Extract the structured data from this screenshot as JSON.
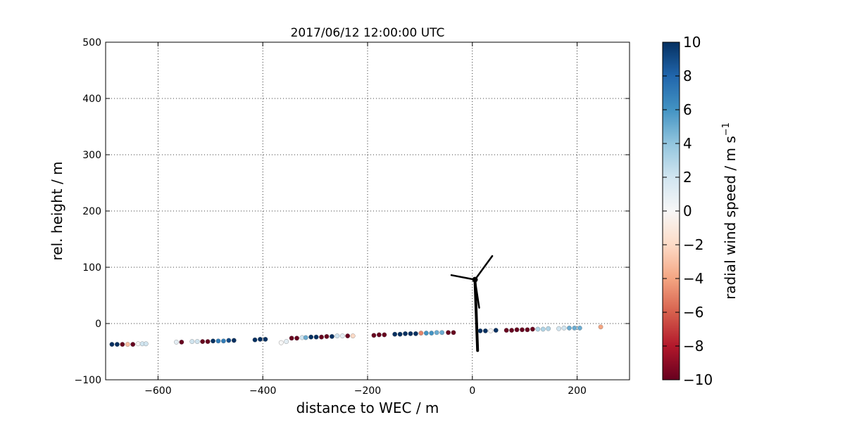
{
  "chart_data": {
    "type": "scatter",
    "title": "2017/06/12 12:00:00 UTC",
    "xlabel": "distance to WEC / m",
    "ylabel": "rel. height / m",
    "xlim": [
      -700,
      300
    ],
    "ylim": [
      -100,
      500
    ],
    "x_ticks": [
      -600,
      -400,
      -200,
      0,
      200
    ],
    "x_tick_labels": [
      "−600",
      "−400",
      "−200",
      "0",
      "200"
    ],
    "y_ticks": [
      -100,
      0,
      100,
      200,
      300,
      400,
      500
    ],
    "y_tick_labels": [
      "−100",
      "0",
      "100",
      "200",
      "300",
      "400",
      "500"
    ],
    "grid": true,
    "colorbar": {
      "label_main": "radial wind speed / m s",
      "label_superscript": "−1",
      "range": [
        -10,
        10
      ],
      "colormap": "RdBu",
      "ticks": [
        -10,
        -8,
        -6,
        -4,
        -2,
        0,
        2,
        4,
        6,
        8,
        10
      ],
      "tick_labels": [
        "−10",
        "−8",
        "−6",
        "−4",
        "−2",
        "0",
        "2",
        "4",
        "6",
        "8",
        "10"
      ]
    },
    "turbine": {
      "tower_base": [
        10,
        -48
      ],
      "hub": [
        5,
        78
      ],
      "blade_tips": [
        [
          -40,
          86
        ],
        [
          38,
          120
        ],
        [
          13,
          28
        ]
      ]
    },
    "points": [
      {
        "x": -688,
        "y": -37,
        "v": 10
      },
      {
        "x": -678,
        "y": -37,
        "v": 10
      },
      {
        "x": -668,
        "y": -37,
        "v": -10
      },
      {
        "x": -658,
        "y": -37,
        "v": -3
      },
      {
        "x": -648,
        "y": -37,
        "v": -10
      },
      {
        "x": -638,
        "y": -36,
        "v": 0
      },
      {
        "x": -630,
        "y": -36,
        "v": 2
      },
      {
        "x": -623,
        "y": -36,
        "v": 2
      },
      {
        "x": -565,
        "y": -33,
        "v": 1
      },
      {
        "x": -555,
        "y": -33,
        "v": -10
      },
      {
        "x": -535,
        "y": -32,
        "v": 2
      },
      {
        "x": -525,
        "y": -32,
        "v": 2
      },
      {
        "x": -515,
        "y": -32,
        "v": -10
      },
      {
        "x": -505,
        "y": -32,
        "v": -10
      },
      {
        "x": -495,
        "y": -31,
        "v": 10
      },
      {
        "x": -485,
        "y": -31,
        "v": 7
      },
      {
        "x": -475,
        "y": -31,
        "v": 7
      },
      {
        "x": -465,
        "y": -30,
        "v": 9
      },
      {
        "x": -455,
        "y": -30,
        "v": 10
      },
      {
        "x": -415,
        "y": -29,
        "v": 10
      },
      {
        "x": -405,
        "y": -28,
        "v": 10
      },
      {
        "x": -395,
        "y": -28,
        "v": 10
      },
      {
        "x": -365,
        "y": -34,
        "v": 0
      },
      {
        "x": -355,
        "y": -32,
        "v": 1
      },
      {
        "x": -345,
        "y": -26,
        "v": -10
      },
      {
        "x": -335,
        "y": -26,
        "v": -10
      },
      {
        "x": -325,
        "y": -25,
        "v": 2
      },
      {
        "x": -318,
        "y": -25,
        "v": 5
      },
      {
        "x": -308,
        "y": -24,
        "v": 10
      },
      {
        "x": -298,
        "y": -24,
        "v": 10
      },
      {
        "x": -288,
        "y": -24,
        "v": -10
      },
      {
        "x": -278,
        "y": -23,
        "v": -10
      },
      {
        "x": -268,
        "y": -23,
        "v": 10
      },
      {
        "x": -258,
        "y": -22,
        "v": 2
      },
      {
        "x": -248,
        "y": -22,
        "v": 1
      },
      {
        "x": -238,
        "y": -22,
        "v": -10
      },
      {
        "x": -228,
        "y": -22,
        "v": -2
      },
      {
        "x": -188,
        "y": -21,
        "v": -10
      },
      {
        "x": -178,
        "y": -20,
        "v": -10
      },
      {
        "x": -168,
        "y": -20,
        "v": -10
      },
      {
        "x": -148,
        "y": -19,
        "v": 10
      },
      {
        "x": -138,
        "y": -19,
        "v": 10
      },
      {
        "x": -128,
        "y": -18,
        "v": 10
      },
      {
        "x": -118,
        "y": -18,
        "v": 10
      },
      {
        "x": -108,
        "y": -18,
        "v": 10
      },
      {
        "x": -98,
        "y": -17,
        "v": -5
      },
      {
        "x": -88,
        "y": -17,
        "v": 6
      },
      {
        "x": -78,
        "y": -17,
        "v": 6
      },
      {
        "x": -68,
        "y": -16,
        "v": 5
      },
      {
        "x": -58,
        "y": -16,
        "v": 5
      },
      {
        "x": -46,
        "y": -16,
        "v": -10
      },
      {
        "x": -36,
        "y": -16,
        "v": -10
      },
      {
        "x": 15,
        "y": -13,
        "v": 10
      },
      {
        "x": 25,
        "y": -13,
        "v": 10
      },
      {
        "x": 35,
        "y": -13,
        "v": 0
      },
      {
        "x": 45,
        "y": -12,
        "v": 10
      },
      {
        "x": 65,
        "y": -12,
        "v": -10
      },
      {
        "x": 75,
        "y": -12,
        "v": -10
      },
      {
        "x": 85,
        "y": -11,
        "v": -10
      },
      {
        "x": 95,
        "y": -11,
        "v": -10
      },
      {
        "x": 105,
        "y": -11,
        "v": -10
      },
      {
        "x": 115,
        "y": -10,
        "v": -10
      },
      {
        "x": 125,
        "y": -10,
        "v": 3
      },
      {
        "x": 135,
        "y": -10,
        "v": 3
      },
      {
        "x": 145,
        "y": -9,
        "v": 3
      },
      {
        "x": 165,
        "y": -9,
        "v": 2
      },
      {
        "x": 175,
        "y": -8,
        "v": 2
      },
      {
        "x": 185,
        "y": -8,
        "v": 5
      },
      {
        "x": 195,
        "y": -8,
        "v": 5
      },
      {
        "x": 205,
        "y": -8,
        "v": 5
      },
      {
        "x": 245,
        "y": -6,
        "v": -4
      }
    ]
  }
}
